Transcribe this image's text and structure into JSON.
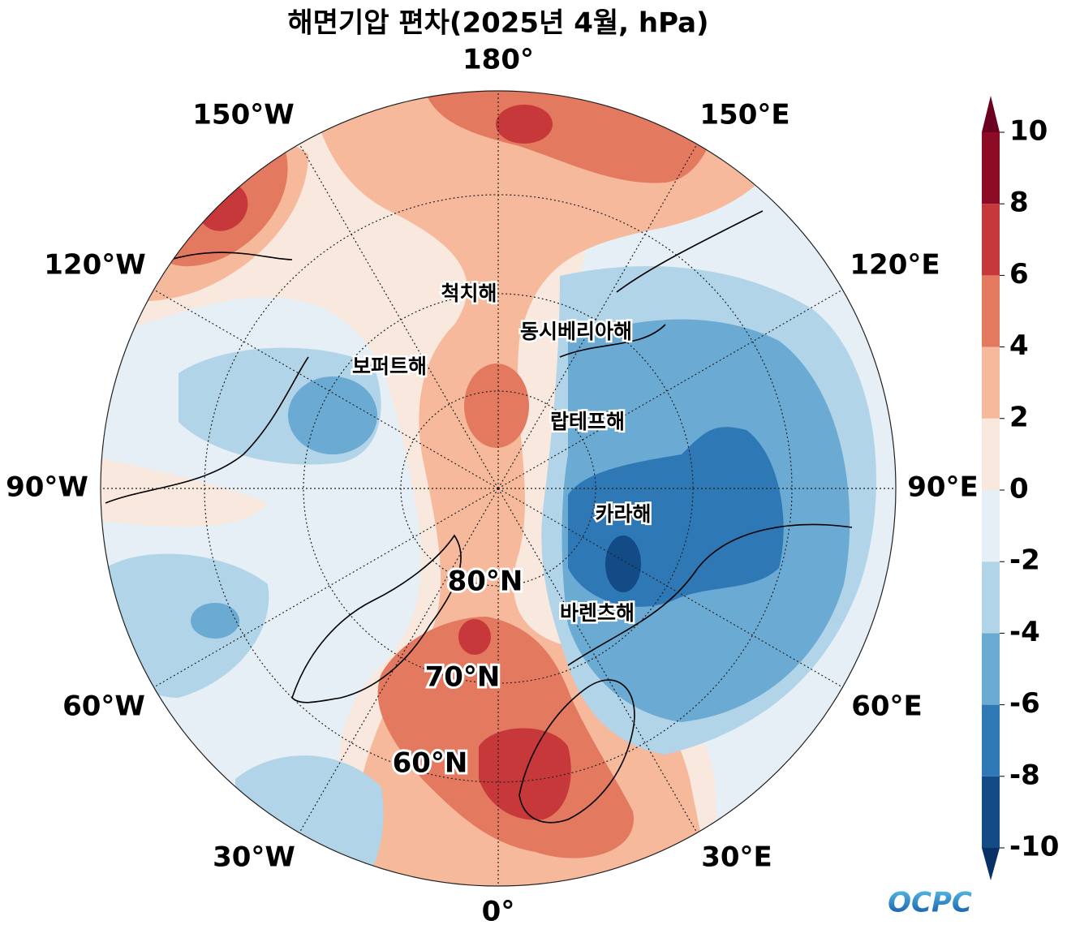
{
  "title": "해면기압 편차(2025년 4월, hPa)",
  "longitude_labels": [
    "180°",
    "150°W",
    "150°E",
    "120°W",
    "120°E",
    "90°W",
    "90°E",
    "60°W",
    "60°E",
    "30°W",
    "30°E",
    "0°"
  ],
  "latitude_labels": [
    "80°N",
    "70°N",
    "60°N"
  ],
  "sea_names": [
    "척치해",
    "동시베리아해",
    "보퍼트해",
    "랍테프해",
    "카라해",
    "바렌츠해"
  ],
  "colorbar": {
    "lim": [
      -10,
      10
    ],
    "ticks": [
      -10,
      -8,
      -6,
      -4,
      -2,
      0,
      2,
      4,
      6,
      8,
      10
    ],
    "colors": [
      "#134b87",
      "#2e78b6",
      "#6aaad3",
      "#b2d4e8",
      "#e6eff6",
      "#f9e8de",
      "#f6b99b",
      "#e3795f",
      "#c7383a",
      "#8c0c25"
    ],
    "under_color": "#0a3166",
    "over_color": "#6b0020"
  },
  "logo": "OCPC"
}
